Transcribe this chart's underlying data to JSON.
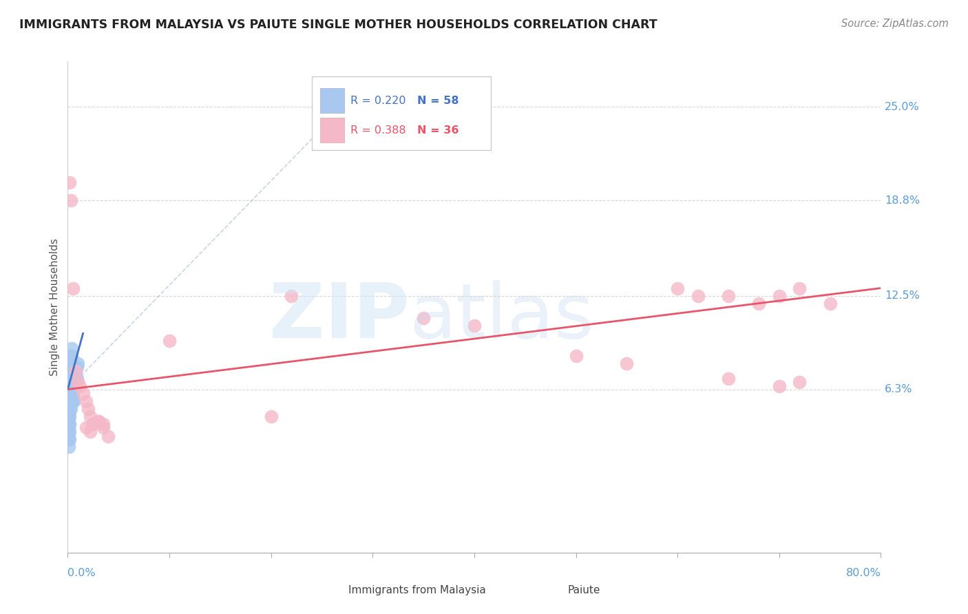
{
  "title": "IMMIGRANTS FROM MALAYSIA VS PAIUTE SINGLE MOTHER HOUSEHOLDS CORRELATION CHART",
  "source": "Source: ZipAtlas.com",
  "ylabel": "Single Mother Households",
  "ytick_labels": [
    "25.0%",
    "18.8%",
    "12.5%",
    "6.3%"
  ],
  "ytick_values": [
    0.25,
    0.188,
    0.125,
    0.063
  ],
  "xmin": 0.0,
  "xmax": 0.8,
  "ymin": -0.045,
  "ymax": 0.28,
  "legend_malaysia_R": "R = 0.220",
  "legend_malaysia_N": "N = 58",
  "legend_paiute_R": "R = 0.388",
  "legend_paiute_N": "N = 36",
  "color_malaysia": "#a8c8f0",
  "color_paiute": "#f5b8c8",
  "color_malaysia_line": "#4472c4",
  "color_paiute_line": "#e8546a",
  "color_diagonal": "#a0b8d8",
  "color_axis_labels": "#5b9bd5",
  "malaysia_x": [
    0.001,
    0.001,
    0.001,
    0.001,
    0.001,
    0.001,
    0.001,
    0.001,
    0.001,
    0.001,
    0.001,
    0.001,
    0.001,
    0.001,
    0.001,
    0.001,
    0.002,
    0.002,
    0.002,
    0.002,
    0.002,
    0.002,
    0.002,
    0.002,
    0.002,
    0.002,
    0.002,
    0.002,
    0.002,
    0.002,
    0.003,
    0.003,
    0.003,
    0.003,
    0.003,
    0.003,
    0.003,
    0.003,
    0.003,
    0.004,
    0.004,
    0.004,
    0.004,
    0.004,
    0.005,
    0.005,
    0.005,
    0.005,
    0.006,
    0.006,
    0.006,
    0.007,
    0.007,
    0.008,
    0.008,
    0.009,
    0.009,
    0.01
  ],
  "malaysia_y": [
    0.06,
    0.062,
    0.064,
    0.066,
    0.068,
    0.07,
    0.05,
    0.052,
    0.048,
    0.045,
    0.042,
    0.04,
    0.038,
    0.035,
    0.03,
    0.025,
    0.075,
    0.078,
    0.08,
    0.072,
    0.068,
    0.065,
    0.062,
    0.06,
    0.055,
    0.05,
    0.045,
    0.04,
    0.035,
    0.03,
    0.08,
    0.082,
    0.085,
    0.075,
    0.07,
    0.065,
    0.06,
    0.055,
    0.05,
    0.09,
    0.085,
    0.078,
    0.072,
    0.065,
    0.07,
    0.065,
    0.06,
    0.055,
    0.068,
    0.062,
    0.055,
    0.072,
    0.065,
    0.075,
    0.068,
    0.078,
    0.07,
    0.08
  ],
  "malaysia_line_x": [
    0.0,
    0.015
  ],
  "malaysia_line_y": [
    0.063,
    0.1
  ],
  "paiute_x": [
    0.002,
    0.003,
    0.005,
    0.008,
    0.01,
    0.012,
    0.015,
    0.018,
    0.02,
    0.022,
    0.025,
    0.03,
    0.035,
    0.1,
    0.2,
    0.22,
    0.35,
    0.4,
    0.5,
    0.55,
    0.6,
    0.62,
    0.65,
    0.68,
    0.7,
    0.72,
    0.65,
    0.7,
    0.72,
    0.75,
    0.018,
    0.022,
    0.025,
    0.03,
    0.035,
    0.04
  ],
  "paiute_y": [
    0.2,
    0.188,
    0.13,
    0.075,
    0.068,
    0.065,
    0.06,
    0.055,
    0.05,
    0.045,
    0.04,
    0.042,
    0.04,
    0.095,
    0.045,
    0.125,
    0.11,
    0.105,
    0.085,
    0.08,
    0.13,
    0.125,
    0.125,
    0.12,
    0.125,
    0.13,
    0.07,
    0.065,
    0.068,
    0.12,
    0.038,
    0.035,
    0.04,
    0.042,
    0.038,
    0.032
  ],
  "paiute_line_x": [
    0.0,
    0.8
  ],
  "paiute_line_y": [
    0.063,
    0.13
  ]
}
